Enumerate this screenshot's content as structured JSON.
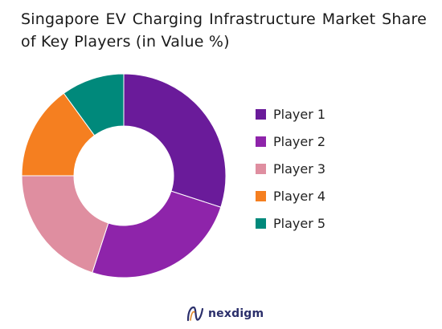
{
  "chart_data": {
    "type": "pie",
    "title": "Singapore EV Charging Infrastructure Market Share of Key Players (in Value %)",
    "categories": [
      "Player 1",
      "Player 2",
      "Player 3",
      "Player 4",
      "Player 5"
    ],
    "values": [
      30,
      25,
      20,
      15,
      10
    ],
    "colors": [
      "#6a1b9a",
      "#8e24aa",
      "#df8ea0",
      "#f57f20",
      "#00897b"
    ],
    "donut": true,
    "legend_position": "right"
  },
  "brand": {
    "name": "nexdigm",
    "logo_icon": "nexdigm-logo-icon"
  }
}
